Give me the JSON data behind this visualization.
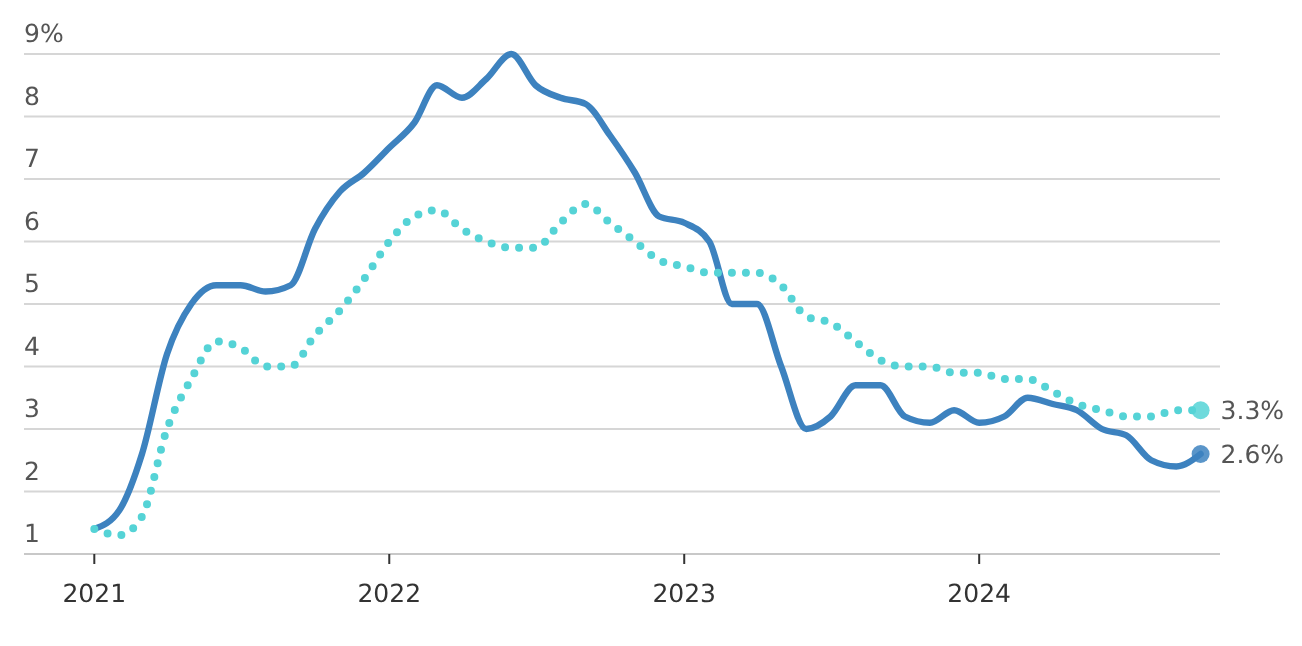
{
  "chart_data": {
    "type": "line",
    "x": [
      "2021-01",
      "2021-02",
      "2021-03",
      "2021-04",
      "2021-05",
      "2021-06",
      "2021-07",
      "2021-08",
      "2021-09",
      "2021-10",
      "2021-11",
      "2021-12",
      "2022-01",
      "2022-02",
      "2022-03",
      "2022-04",
      "2022-05",
      "2022-06",
      "2022-07",
      "2022-08",
      "2022-09",
      "2022-10",
      "2022-11",
      "2022-12",
      "2023-01",
      "2023-02",
      "2023-03",
      "2023-04",
      "2023-05",
      "2023-06",
      "2023-07",
      "2023-08",
      "2023-09",
      "2023-10",
      "2023-11",
      "2023-12",
      "2024-01",
      "2024-02",
      "2024-03",
      "2024-04",
      "2024-05",
      "2024-06",
      "2024-07",
      "2024-08",
      "2024-09",
      "2024-10"
    ],
    "series": [
      {
        "color": "#3d82bf",
        "line_style": "solid",
        "values": [
          1.4,
          1.7,
          2.6,
          4.2,
          5.0,
          5.3,
          5.3,
          5.2,
          5.3,
          6.2,
          6.8,
          7.1,
          7.5,
          7.9,
          8.5,
          8.3,
          8.6,
          9.0,
          8.5,
          8.3,
          8.2,
          7.7,
          7.1,
          6.4,
          6.3,
          6.0,
          5.0,
          5.0,
          4.0,
          3.0,
          3.2,
          3.7,
          3.7,
          3.2,
          3.1,
          3.3,
          3.1,
          3.2,
          3.5,
          3.4,
          3.3,
          3.0,
          2.9,
          2.5,
          2.4,
          2.6
        ]
      },
      {
        "color": "#55d3d6",
        "line_style": "dotted",
        "values": [
          1.4,
          1.3,
          1.6,
          3.0,
          3.8,
          4.4,
          4.3,
          4.0,
          4.0,
          4.5,
          4.9,
          5.4,
          6.0,
          6.4,
          6.5,
          6.2,
          6.0,
          5.9,
          5.9,
          6.3,
          6.6,
          6.3,
          6.0,
          5.7,
          5.6,
          5.5,
          5.5,
          5.5,
          5.3,
          4.8,
          4.7,
          4.4,
          4.1,
          4.0,
          4.0,
          3.9,
          3.9,
          3.8,
          3.8,
          3.6,
          3.4,
          3.3,
          3.2,
          3.2,
          3.3,
          3.3
        ]
      }
    ],
    "annotations": [
      {
        "text": "2.6%",
        "x": "2024-10",
        "y": 2.6
      },
      {
        "text": "3.3%",
        "x": "2024-10",
        "y": 3.3
      }
    ],
    "xlim": [
      "2020-10-06",
      "2024-10-25"
    ],
    "xticks": [
      {
        "value": "2021-01",
        "label": "2021"
      },
      {
        "value": "2022-01",
        "label": "2022"
      },
      {
        "value": "2023-01",
        "label": "2023"
      },
      {
        "value": "2024-01",
        "label": "2024"
      }
    ],
    "ylim": [
      1,
      9
    ],
    "yticks": [
      1,
      2,
      3,
      4,
      5,
      6,
      7,
      8,
      {
        "value": 9,
        "label": "9%"
      }
    ],
    "grid": "y",
    "marker": "none"
  }
}
